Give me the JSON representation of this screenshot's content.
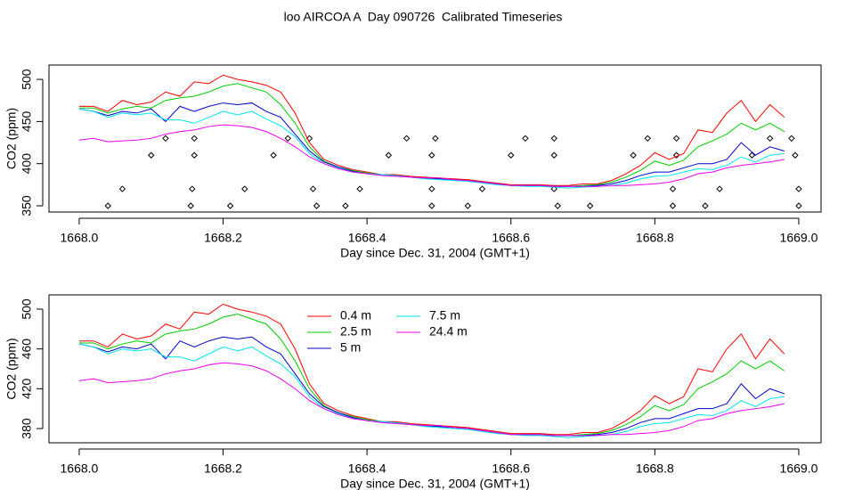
{
  "title": "loo AIRCOA A  Day 090726  Calibrated Timeseries",
  "chart_data": [
    {
      "type": "line",
      "xlabel": "Day since Dec. 31, 2004 (GMT+1)",
      "ylabel": "CO2 (ppm)",
      "xlim": [
        1667.958,
        1669.031
      ],
      "ylim": [
        342.6,
        517
      ],
      "xticks": [
        {
          "value": 1668.0,
          "label": "1668.0"
        },
        {
          "value": 1668.2,
          "label": "1668.2"
        },
        {
          "value": 1668.4,
          "label": "1668.4"
        },
        {
          "value": 1668.6,
          "label": "1668.6"
        },
        {
          "value": 1668.8,
          "label": "1668.8"
        },
        {
          "value": 1669.0,
          "label": "1669.0"
        }
      ],
      "yticks": [
        350,
        400,
        450,
        500
      ],
      "x": [
        1668.0,
        1668.02,
        1668.04,
        1668.06,
        1668.08,
        1668.1,
        1668.12,
        1668.14,
        1668.16,
        1668.18,
        1668.2,
        1668.22,
        1668.24,
        1668.26,
        1668.28,
        1668.3,
        1668.32,
        1668.34,
        1668.36,
        1668.38,
        1668.4,
        1668.42,
        1668.44,
        1668.46,
        1668.48,
        1668.5,
        1668.52,
        1668.54,
        1668.56,
        1668.58,
        1668.6,
        1668.62,
        1668.64,
        1668.66,
        1668.68,
        1668.7,
        1668.72,
        1668.74,
        1668.76,
        1668.78,
        1668.8,
        1668.82,
        1668.84,
        1668.86,
        1668.88,
        1668.9,
        1668.92,
        1668.94,
        1668.96,
        1668.98
      ],
      "series": [
        {
          "color": "#ff0000",
          "values": [
            468,
            468,
            462,
            475,
            470,
            473,
            485,
            480,
            497,
            495,
            505,
            500,
            497,
            493,
            485,
            460,
            425,
            405,
            398,
            393,
            390,
            387,
            387,
            385,
            384,
            383,
            382,
            381,
            379,
            377,
            375,
            375,
            375,
            374,
            374,
            376,
            376,
            380,
            388,
            398,
            413,
            405,
            412,
            440,
            437,
            460,
            475,
            450,
            470,
            455
          ]
        },
        {
          "color": "#00cd00",
          "values": [
            466,
            466,
            460,
            465,
            468,
            466,
            475,
            478,
            480,
            485,
            492,
            495,
            490,
            485,
            470,
            448,
            420,
            403,
            396,
            392,
            389,
            387,
            386,
            384,
            383,
            382,
            381,
            380,
            378,
            376,
            374,
            374,
            374,
            373,
            373,
            374,
            375,
            378,
            384,
            392,
            403,
            398,
            404,
            420,
            427,
            435,
            448,
            440,
            448,
            438
          ]
        },
        {
          "color": "#0000cd",
          "values": [
            465,
            462,
            457,
            462,
            460,
            465,
            450,
            468,
            462,
            468,
            472,
            470,
            472,
            462,
            455,
            435,
            415,
            402,
            396,
            391,
            388,
            387,
            386,
            384,
            383,
            382,
            381,
            380,
            378,
            376,
            374,
            374,
            374,
            373,
            373,
            373,
            374,
            376,
            380,
            386,
            390,
            390,
            395,
            400,
            400,
            405,
            425,
            410,
            420,
            415
          ]
        },
        {
          "color": "#00e5ee",
          "values": [
            465,
            462,
            455,
            460,
            458,
            460,
            452,
            452,
            448,
            455,
            462,
            458,
            462,
            453,
            445,
            432,
            412,
            400,
            395,
            390,
            388,
            387,
            386,
            384,
            382,
            381,
            380,
            379,
            377,
            375,
            374,
            373,
            373,
            372,
            371,
            372,
            373,
            374,
            377,
            382,
            385,
            386,
            390,
            394,
            393,
            398,
            408,
            402,
            410,
            412
          ]
        },
        {
          "color": "#ee00ee",
          "values": [
            428,
            430,
            426,
            427,
            428,
            430,
            435,
            438,
            440,
            444,
            446,
            445,
            443,
            438,
            430,
            420,
            408,
            400,
            394,
            390,
            388,
            386,
            385,
            384,
            383,
            383,
            381,
            380,
            378,
            376,
            374,
            374,
            374,
            373,
            373,
            373,
            373,
            374,
            374,
            375,
            376,
            378,
            382,
            388,
            390,
            395,
            398,
            400,
            402,
            405
          ]
        }
      ],
      "points": {
        "x": [
          1668.04,
          1668.06,
          1668.1,
          1668.12,
          1668.155,
          1668.157,
          1668.16,
          1668.16,
          1668.21,
          1668.23,
          1668.27,
          1668.29,
          1668.32,
          1668.325,
          1668.33,
          1668.37,
          1668.39,
          1668.43,
          1668.455,
          1668.49,
          1668.49,
          1668.49,
          1668.495,
          1668.54,
          1668.56,
          1668.6,
          1668.62,
          1668.66,
          1668.66,
          1668.66,
          1668.665,
          1668.71,
          1668.77,
          1668.79,
          1668.825,
          1668.825,
          1668.83,
          1668.83,
          1668.87,
          1668.89,
          1668.935,
          1668.96,
          1668.99,
          1668.995,
          1669.0,
          1669.0
        ],
        "values": [
          350,
          370,
          410,
          430,
          350,
          370,
          410,
          430,
          350,
          370,
          410,
          430,
          430,
          370,
          350,
          350,
          370,
          410,
          430,
          350,
          370,
          410,
          430,
          350,
          370,
          410,
          430,
          430,
          410,
          370,
          350,
          350,
          410,
          430,
          350,
          370,
          410,
          430,
          350,
          370,
          410,
          430,
          430,
          410,
          370,
          350
        ]
      }
    },
    {
      "type": "line",
      "xlabel": "Day since Dec. 31, 2004 (GMT+1)",
      "ylabel": "CO2 (ppm)",
      "xlim": [
        1667.958,
        1669.031
      ],
      "ylim": [
        365.7,
        514.3
      ],
      "xticks": [
        {
          "value": 1668.0,
          "label": "1668.0"
        },
        {
          "value": 1668.2,
          "label": "1668.2"
        },
        {
          "value": 1668.4,
          "label": "1668.4"
        },
        {
          "value": 1668.6,
          "label": "1668.6"
        },
        {
          "value": 1668.8,
          "label": "1668.8"
        },
        {
          "value": 1669.0,
          "label": "1669.0"
        }
      ],
      "yticks": [
        380,
        420,
        460,
        500
      ],
      "x": [
        1668.0,
        1668.02,
        1668.04,
        1668.06,
        1668.08,
        1668.1,
        1668.12,
        1668.14,
        1668.16,
        1668.18,
        1668.2,
        1668.22,
        1668.24,
        1668.26,
        1668.28,
        1668.3,
        1668.32,
        1668.34,
        1668.36,
        1668.38,
        1668.4,
        1668.42,
        1668.44,
        1668.46,
        1668.48,
        1668.5,
        1668.52,
        1668.54,
        1668.56,
        1668.58,
        1668.6,
        1668.62,
        1668.64,
        1668.66,
        1668.68,
        1668.7,
        1668.72,
        1668.74,
        1668.76,
        1668.78,
        1668.8,
        1668.82,
        1668.84,
        1668.86,
        1668.88,
        1668.9,
        1668.92,
        1668.94,
        1668.96,
        1668.98
      ],
      "series": [
        {
          "name": "0.4 m",
          "color": "#ff0000",
          "values": [
            468,
            468,
            462,
            475,
            470,
            473,
            485,
            480,
            497,
            495,
            505,
            500,
            497,
            493,
            485,
            460,
            425,
            405,
            398,
            393,
            390,
            387,
            387,
            385,
            384,
            383,
            382,
            381,
            379,
            377,
            375,
            375,
            375,
            374,
            374,
            376,
            376,
            380,
            388,
            398,
            413,
            405,
            412,
            440,
            437,
            460,
            475,
            450,
            470,
            455
          ]
        },
        {
          "name": "2.5 m",
          "color": "#00cd00",
          "values": [
            466,
            466,
            460,
            465,
            468,
            466,
            475,
            478,
            480,
            485,
            492,
            495,
            490,
            485,
            470,
            448,
            420,
            403,
            396,
            392,
            389,
            387,
            386,
            384,
            383,
            382,
            381,
            380,
            378,
            376,
            374,
            374,
            374,
            373,
            373,
            374,
            375,
            378,
            384,
            392,
            403,
            398,
            404,
            420,
            427,
            435,
            448,
            440,
            448,
            438
          ]
        },
        {
          "name": "5 m",
          "color": "#0000cd",
          "values": [
            465,
            462,
            457,
            462,
            460,
            465,
            450,
            468,
            462,
            468,
            472,
            470,
            472,
            462,
            455,
            435,
            415,
            402,
            396,
            391,
            388,
            387,
            386,
            384,
            383,
            382,
            381,
            380,
            378,
            376,
            374,
            374,
            374,
            373,
            373,
            373,
            374,
            376,
            380,
            386,
            390,
            390,
            395,
            400,
            400,
            405,
            425,
            410,
            420,
            415
          ]
        },
        {
          "name": "7.5 m",
          "color": "#00e5ee",
          "values": [
            465,
            462,
            455,
            460,
            458,
            460,
            452,
            452,
            448,
            455,
            462,
            458,
            462,
            453,
            445,
            432,
            412,
            400,
            395,
            390,
            388,
            387,
            386,
            384,
            382,
            381,
            380,
            379,
            377,
            375,
            374,
            373,
            373,
            372,
            371,
            372,
            373,
            374,
            377,
            382,
            385,
            386,
            390,
            394,
            393,
            398,
            408,
            402,
            410,
            412
          ]
        },
        {
          "name": "24.4 m",
          "color": "#ee00ee",
          "values": [
            428,
            430,
            426,
            427,
            428,
            430,
            435,
            438,
            440,
            444,
            446,
            445,
            443,
            438,
            430,
            420,
            408,
            400,
            394,
            390,
            388,
            386,
            385,
            384,
            383,
            383,
            381,
            380,
            378,
            376,
            374,
            374,
            374,
            373,
            373,
            373,
            373,
            374,
            374,
            375,
            376,
            378,
            382,
            388,
            390,
            395,
            398,
            400,
            402,
            405
          ]
        }
      ]
    }
  ]
}
